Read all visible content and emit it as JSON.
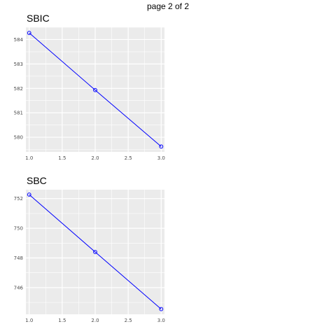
{
  "page_label": "page 2 of 2",
  "colors": {
    "panel_bg": "#ebebeb",
    "grid": "#ffffff",
    "series": "#0000ff"
  },
  "chart_data": [
    {
      "type": "line",
      "title": "SBIC",
      "xlabel": "",
      "ylabel": "",
      "x": [
        1,
        2,
        3
      ],
      "series": [
        {
          "values": [
            584.27,
            581.93,
            579.62
          ]
        }
      ],
      "xlim": [
        0.95,
        3.05
      ],
      "ylim": [
        579.4,
        584.5
      ],
      "x_ticks": [
        "1.0",
        "1.5",
        "2.0",
        "2.5",
        "3.0"
      ],
      "y_ticks": [
        "580",
        "581",
        "582",
        "583",
        "584"
      ],
      "grid": true,
      "legend": "none",
      "markers": "open-circle"
    },
    {
      "type": "line",
      "title": "SBC",
      "xlabel": "",
      "ylabel": "",
      "x": [
        1,
        2,
        3
      ],
      "series": [
        {
          "values": [
            752.27,
            748.4,
            744.55
          ]
        }
      ],
      "xlim": [
        0.95,
        3.05
      ],
      "ylim": [
        744.2,
        752.6
      ],
      "x_ticks": [
        "1.0",
        "1.5",
        "2.0",
        "2.5",
        "3.0"
      ],
      "y_ticks": [
        "746",
        "748",
        "750",
        "752"
      ],
      "grid": true,
      "legend": "none",
      "markers": "open-circle"
    }
  ]
}
